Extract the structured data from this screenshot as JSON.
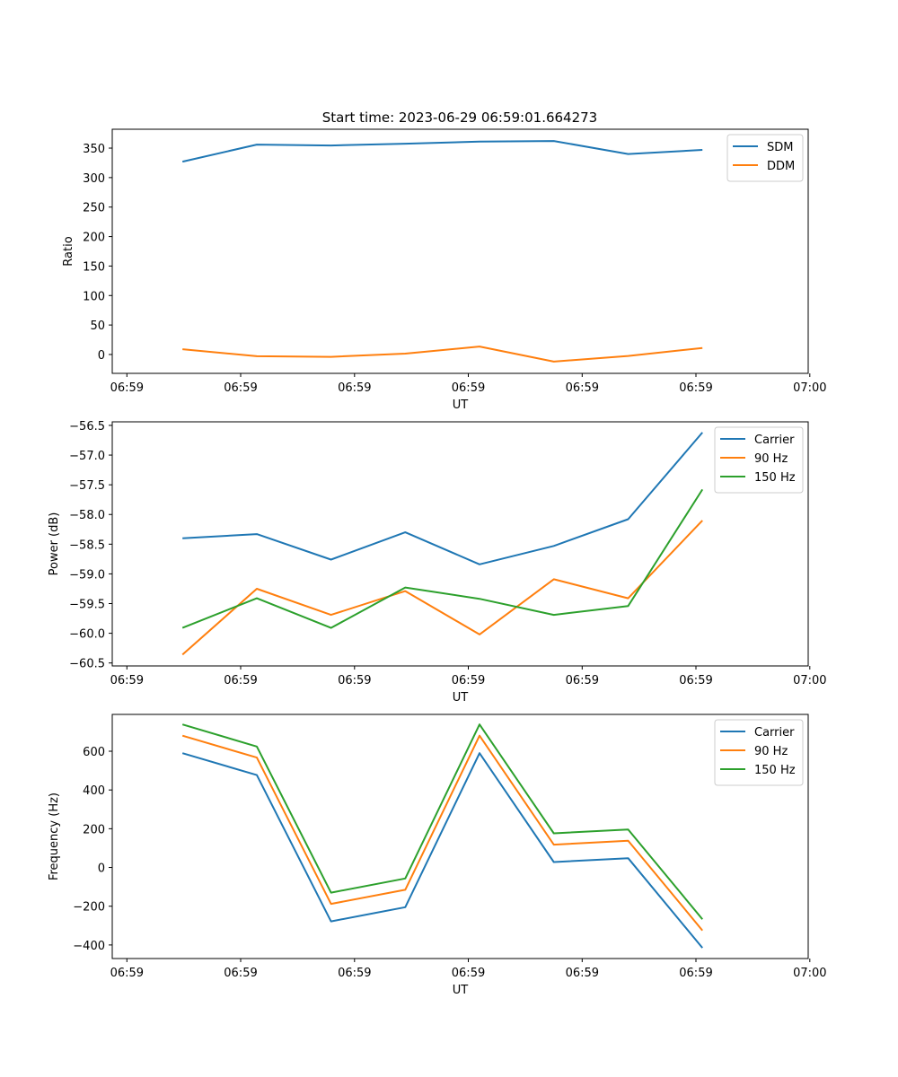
{
  "title": "Start time: 2023-06-29 06:59:01.664273",
  "colors": {
    "blue": "#1f77b4",
    "orange": "#ff7f0e",
    "green": "#2ca02c"
  },
  "chart_data": [
    {
      "type": "line",
      "xlabel": "UT",
      "ylabel": "Ratio",
      "x_tick_labels": [
        "06:59",
        "06:59",
        "06:59",
        "06:59",
        "06:59",
        "06:59",
        "07:00"
      ],
      "y_ticks": [
        0,
        50,
        100,
        150,
        200,
        250,
        300,
        350
      ],
      "ylim": [
        -32,
        382
      ],
      "legend_position": "upper right",
      "series": [
        {
          "name": "SDM",
          "color": "#1f77b4",
          "values": [
            327,
            356,
            354.5,
            357.5,
            361,
            362,
            340,
            347
          ]
        },
        {
          "name": "DDM",
          "color": "#ff7f0e",
          "values": [
            9,
            -3,
            -4,
            1.5,
            13.5,
            -12,
            -2.5,
            11
          ]
        }
      ]
    },
    {
      "type": "line",
      "xlabel": "UT",
      "ylabel": "Power (dB)",
      "x_tick_labels": [
        "06:59",
        "06:59",
        "06:59",
        "06:59",
        "06:59",
        "06:59",
        "07:00"
      ],
      "y_ticks": [
        -60.5,
        -60.0,
        -59.5,
        -59.0,
        -58.5,
        -58.0,
        -57.5,
        -57.0,
        -56.5
      ],
      "y_tick_labels": [
        "−60.5",
        "−60.0",
        "−59.5",
        "−59.0",
        "−58.5",
        "−58.0",
        "−57.5",
        "−57.0",
        "−56.5"
      ],
      "ylim": [
        -60.55,
        -56.44
      ],
      "legend_position": "upper right",
      "series": [
        {
          "name": "Carrier",
          "color": "#1f77b4",
          "values": [
            -58.4,
            -58.33,
            -58.76,
            -58.3,
            -58.84,
            -58.53,
            -58.08,
            -56.62
          ]
        },
        {
          "name": "90 Hz",
          "color": "#ff7f0e",
          "values": [
            -60.36,
            -59.25,
            -59.69,
            -59.29,
            -60.02,
            -59.09,
            -59.41,
            -58.1
          ]
        },
        {
          "name": "150 Hz",
          "color": "#2ca02c",
          "values": [
            -59.91,
            -59.41,
            -59.91,
            -59.23,
            -59.42,
            -59.69,
            -59.54,
            -57.58
          ]
        }
      ]
    },
    {
      "type": "line",
      "xlabel": "UT",
      "ylabel": "Frequency (Hz)",
      "x_tick_labels": [
        "06:59",
        "06:59",
        "06:59",
        "06:59",
        "06:59",
        "06:59",
        "07:00"
      ],
      "y_ticks": [
        -400,
        -200,
        0,
        200,
        400,
        600
      ],
      "y_tick_labels": [
        "−400",
        "−200",
        "0",
        "200",
        "400",
        "600"
      ],
      "ylim": [
        -470,
        790
      ],
      "legend_position": "upper right",
      "series": [
        {
          "name": "Carrier",
          "color": "#1f77b4",
          "values": [
            590,
            477,
            -278,
            -205,
            590,
            28,
            48,
            -415
          ]
        },
        {
          "name": "90 Hz",
          "color": "#ff7f0e",
          "values": [
            680,
            567,
            -188,
            -115,
            680,
            118,
            138,
            -325
          ]
        },
        {
          "name": "150 Hz",
          "color": "#2ca02c",
          "values": [
            738,
            624,
            -130,
            -57,
            738,
            176,
            196,
            -267
          ]
        }
      ]
    }
  ]
}
